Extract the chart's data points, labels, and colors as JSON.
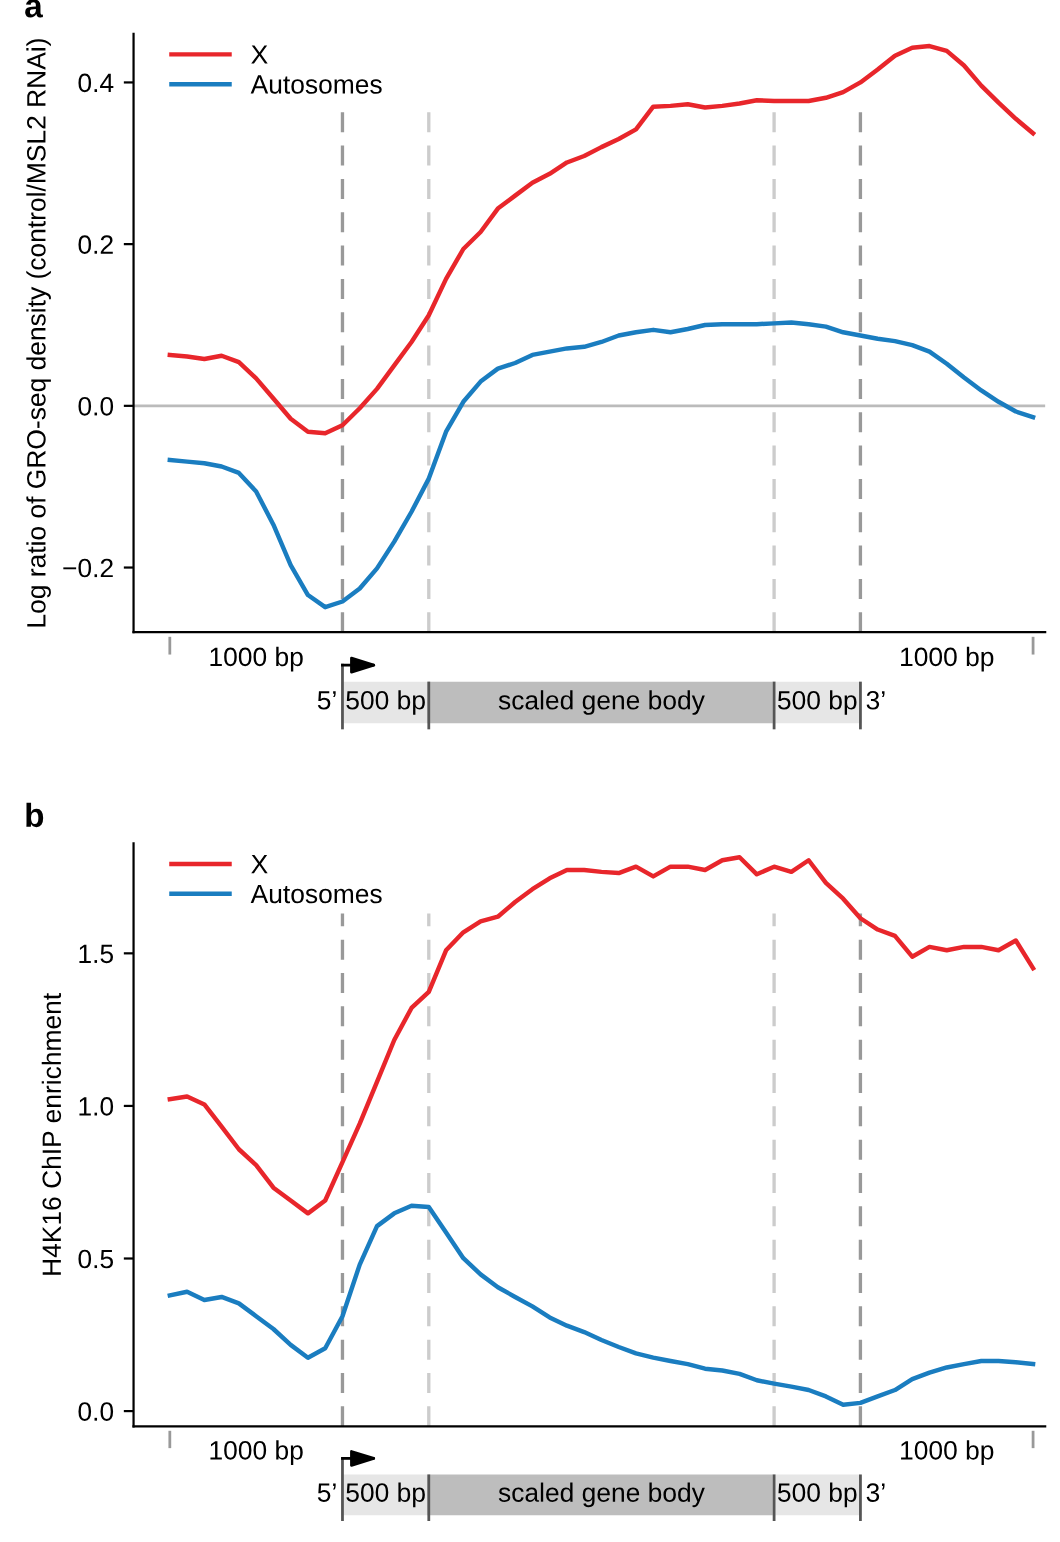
{
  "chart_data": [
    {
      "type": "line",
      "title": "a",
      "ylabel": "Log ratio of GRO-seq density (control/MSL2 RNAi)",
      "categories": [
        null,
        null,
        null,
        null,
        null,
        null,
        null,
        null,
        null,
        null,
        null,
        null,
        null,
        null,
        null,
        null,
        null,
        null,
        null,
        null,
        null,
        null,
        null,
        null,
        null,
        null,
        null,
        null,
        null,
        null,
        null,
        null,
        null,
        null,
        null,
        null,
        null,
        null,
        null,
        null,
        null,
        null,
        null,
        null,
        null,
        null,
        null,
        null,
        null,
        null,
        null
      ],
      "series": [
        {
          "name": "X",
          "color": "#e8262b",
          "values": [
            0.063,
            0.061,
            0.058,
            0.062,
            0.054,
            0.034,
            0.009,
            -0.016,
            -0.032,
            -0.034,
            -0.024,
            -0.003,
            0.021,
            0.05,
            0.079,
            0.112,
            0.157,
            0.194,
            0.215,
            0.244,
            0.26,
            0.276,
            0.287,
            0.301,
            0.309,
            0.32,
            0.33,
            0.342,
            0.37,
            0.371,
            0.373,
            0.369,
            0.371,
            0.374,
            0.378,
            0.377,
            0.377,
            0.377,
            0.381,
            0.388,
            0.4,
            0.416,
            0.433,
            0.443,
            0.445,
            0.439,
            0.421,
            0.396,
            0.375,
            0.355,
            0.337
          ]
        },
        {
          "name": "Autosomes",
          "color": "#1a7dc0",
          "values": [
            -0.067,
            -0.069,
            -0.071,
            -0.075,
            -0.083,
            -0.106,
            -0.147,
            -0.197,
            -0.234,
            -0.249,
            -0.242,
            -0.226,
            -0.201,
            -0.168,
            -0.131,
            -0.09,
            -0.032,
            0.005,
            0.03,
            0.046,
            0.053,
            0.063,
            0.067,
            0.071,
            0.073,
            0.079,
            0.087,
            0.091,
            0.094,
            0.091,
            0.095,
            0.1,
            0.101,
            0.101,
            0.101,
            0.102,
            0.103,
            0.101,
            0.098,
            0.091,
            0.087,
            0.083,
            0.08,
            0.075,
            0.067,
            0.052,
            0.035,
            0.019,
            0.005,
            -0.007,
            -0.014
          ]
        }
      ],
      "ylim": [
        -0.28,
        0.46
      ],
      "yticks": [
        {
          "value": -0.2,
          "label": "−0.2"
        },
        {
          "value": 0.0,
          "label": "0.0"
        },
        {
          "value": 0.2,
          "label": "0.2"
        },
        {
          "value": 0.4,
          "label": "0.4"
        }
      ],
      "ref_lines": [
        {
          "axis": "y",
          "value": 0,
          "color": "#bbbbbb",
          "line_style": "solid"
        }
      ],
      "annotations": [
        "1000 bp",
        "5’",
        "500 bp",
        "scaled gene body",
        "500 bp",
        "3’",
        "1000 bp"
      ],
      "legend": "top left",
      "grid": "x",
      "marker": "none",
      "line_style": "solid"
    },
    {
      "type": "line",
      "title": "b",
      "ylabel": "H4K16 ChIP enrichment",
      "categories": [
        null,
        null,
        null,
        null,
        null,
        null,
        null,
        null,
        null,
        null,
        null,
        null,
        null,
        null,
        null,
        null,
        null,
        null,
        null,
        null,
        null,
        null,
        null,
        null,
        null,
        null,
        null,
        null,
        null,
        null,
        null,
        null,
        null,
        null,
        null,
        null,
        null,
        null,
        null,
        null,
        null,
        null,
        null,
        null,
        null,
        null,
        null,
        null,
        null,
        null,
        null
      ],
      "series": [
        {
          "name": "X",
          "color": "#e8262b",
          "values": [
            1.022,
            1.031,
            1.005,
            0.932,
            0.858,
            0.806,
            0.732,
            0.69,
            0.648,
            0.69,
            0.816,
            0.942,
            1.079,
            1.216,
            1.321,
            1.374,
            1.51,
            1.569,
            1.605,
            1.62,
            1.668,
            1.71,
            1.746,
            1.773,
            1.773,
            1.767,
            1.763,
            1.784,
            1.752,
            1.784,
            1.784,
            1.773,
            1.805,
            1.815,
            1.759,
            1.784,
            1.767,
            1.805,
            1.731,
            1.679,
            1.615,
            1.578,
            1.557,
            1.489,
            1.521,
            1.51,
            1.521,
            1.521,
            1.51,
            1.542,
            1.451
          ]
        },
        {
          "name": "Autosomes",
          "color": "#1a7dc0",
          "values": [
            0.379,
            0.391,
            0.364,
            0.374,
            0.353,
            0.311,
            0.269,
            0.217,
            0.175,
            0.206,
            0.311,
            0.48,
            0.606,
            0.648,
            0.673,
            0.669,
            0.585,
            0.501,
            0.448,
            0.406,
            0.374,
            0.343,
            0.307,
            0.28,
            0.259,
            0.233,
            0.21,
            0.189,
            0.175,
            0.164,
            0.154,
            0.139,
            0.133,
            0.122,
            0.101,
            0.09,
            0.08,
            0.069,
            0.048,
            0.021,
            0.027,
            0.048,
            0.069,
            0.105,
            0.126,
            0.143,
            0.154,
            0.164,
            0.164,
            0.16,
            0.154
          ]
        }
      ],
      "ylim": [
        -0.05,
        1.86
      ],
      "yticks": [
        {
          "value": 0.0,
          "label": "0.0"
        },
        {
          "value": 0.5,
          "label": "0.5"
        },
        {
          "value": 1.0,
          "label": "1.0"
        },
        {
          "value": 1.5,
          "label": "1.5"
        }
      ],
      "annotations": [
        "1000 bp",
        "5’",
        "500 bp",
        "scaled gene body",
        "500 bp",
        "3’",
        "1000 bp"
      ],
      "legend": "top left",
      "grid": "x",
      "marker": "none",
      "line_style": "solid"
    }
  ]
}
